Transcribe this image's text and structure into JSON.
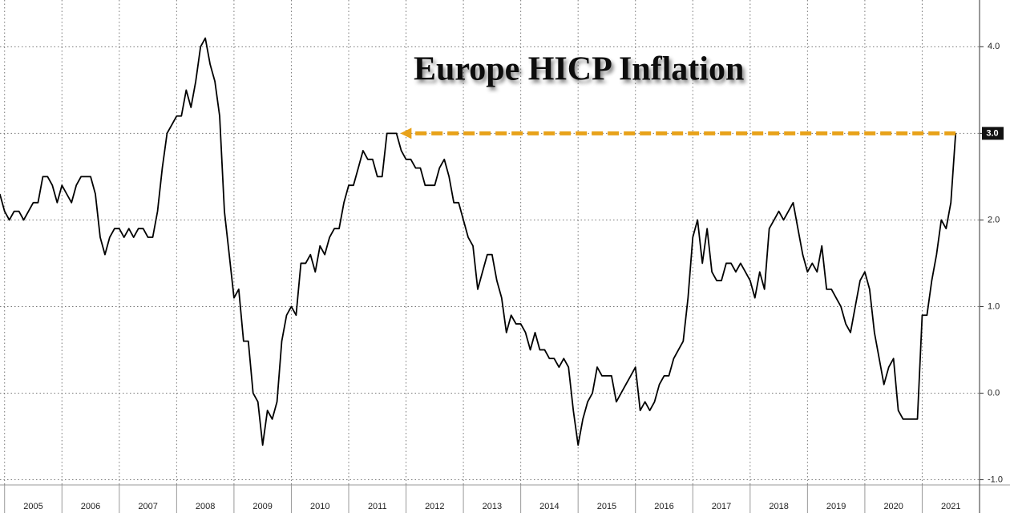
{
  "chart_data": {
    "type": "line",
    "title": "Europe HICP Inflation",
    "x": [
      2004.917,
      2005.0,
      2005.083,
      2005.167,
      2005.25,
      2005.333,
      2005.417,
      2005.5,
      2005.583,
      2005.667,
      2005.75,
      2005.833,
      2005.917,
      2006.0,
      2006.083,
      2006.167,
      2006.25,
      2006.333,
      2006.417,
      2006.5,
      2006.583,
      2006.667,
      2006.75,
      2006.833,
      2006.917,
      2007.0,
      2007.083,
      2007.167,
      2007.25,
      2007.333,
      2007.417,
      2007.5,
      2007.583,
      2007.667,
      2007.75,
      2007.833,
      2007.917,
      2008.0,
      2008.083,
      2008.167,
      2008.25,
      2008.333,
      2008.417,
      2008.5,
      2008.583,
      2008.667,
      2008.75,
      2008.833,
      2008.917,
      2009.0,
      2009.083,
      2009.167,
      2009.25,
      2009.333,
      2009.417,
      2009.5,
      2009.583,
      2009.667,
      2009.75,
      2009.833,
      2009.917,
      2010.0,
      2010.083,
      2010.167,
      2010.25,
      2010.333,
      2010.417,
      2010.5,
      2010.583,
      2010.667,
      2010.75,
      2010.833,
      2010.917,
      2011.0,
      2011.083,
      2011.167,
      2011.25,
      2011.333,
      2011.417,
      2011.5,
      2011.583,
      2011.667,
      2011.75,
      2011.833,
      2011.917,
      2012.0,
      2012.083,
      2012.167,
      2012.25,
      2012.333,
      2012.417,
      2012.5,
      2012.583,
      2012.667,
      2012.75,
      2012.833,
      2012.917,
      2013.0,
      2013.083,
      2013.167,
      2013.25,
      2013.333,
      2013.417,
      2013.5,
      2013.583,
      2013.667,
      2013.75,
      2013.833,
      2013.917,
      2014.0,
      2014.083,
      2014.167,
      2014.25,
      2014.333,
      2014.417,
      2014.5,
      2014.583,
      2014.667,
      2014.75,
      2014.833,
      2014.917,
      2015.0,
      2015.083,
      2015.167,
      2015.25,
      2015.333,
      2015.417,
      2015.5,
      2015.583,
      2015.667,
      2015.75,
      2015.833,
      2015.917,
      2016.0,
      2016.083,
      2016.167,
      2016.25,
      2016.333,
      2016.417,
      2016.5,
      2016.583,
      2016.667,
      2016.75,
      2016.833,
      2016.917,
      2017.0,
      2017.083,
      2017.167,
      2017.25,
      2017.333,
      2017.417,
      2017.5,
      2017.583,
      2017.667,
      2017.75,
      2017.833,
      2017.917,
      2018.0,
      2018.083,
      2018.167,
      2018.25,
      2018.333,
      2018.417,
      2018.5,
      2018.583,
      2018.667,
      2018.75,
      2018.833,
      2018.917,
      2019.0,
      2019.083,
      2019.167,
      2019.25,
      2019.333,
      2019.417,
      2019.5,
      2019.583,
      2019.667,
      2019.75,
      2019.833,
      2019.917,
      2020.0,
      2020.083,
      2020.167,
      2020.25,
      2020.333,
      2020.417,
      2020.5,
      2020.583,
      2020.667,
      2020.75,
      2020.833,
      2020.917,
      2021.0,
      2021.083,
      2021.167,
      2021.25,
      2021.333,
      2021.417,
      2021.5,
      2021.583
    ],
    "series": [
      {
        "name": "HICP",
        "color": "#000000",
        "values": [
          2.3,
          2.1,
          2.0,
          2.1,
          2.1,
          2.0,
          2.1,
          2.2,
          2.2,
          2.5,
          2.5,
          2.4,
          2.2,
          2.4,
          2.3,
          2.2,
          2.4,
          2.5,
          2.5,
          2.5,
          2.3,
          1.8,
          1.6,
          1.8,
          1.9,
          1.9,
          1.8,
          1.9,
          1.8,
          1.9,
          1.9,
          1.8,
          1.8,
          2.1,
          2.6,
          3.0,
          3.1,
          3.2,
          3.2,
          3.5,
          3.3,
          3.6,
          4.0,
          4.1,
          3.8,
          3.6,
          3.2,
          2.1,
          1.6,
          1.1,
          1.2,
          0.6,
          0.6,
          0.0,
          -0.1,
          -0.6,
          -0.2,
          -0.3,
          -0.1,
          0.6,
          0.9,
          1.0,
          0.9,
          1.5,
          1.5,
          1.6,
          1.4,
          1.7,
          1.6,
          1.8,
          1.9,
          1.9,
          2.2,
          2.4,
          2.4,
          2.6,
          2.8,
          2.7,
          2.7,
          2.5,
          2.5,
          3.0,
          3.0,
          3.0,
          2.8,
          2.7,
          2.7,
          2.6,
          2.6,
          2.4,
          2.4,
          2.4,
          2.6,
          2.7,
          2.5,
          2.2,
          2.2,
          2.0,
          1.8,
          1.7,
          1.2,
          1.4,
          1.6,
          1.6,
          1.3,
          1.1,
          0.7,
          0.9,
          0.8,
          0.8,
          0.7,
          0.5,
          0.7,
          0.5,
          0.5,
          0.4,
          0.4,
          0.3,
          0.4,
          0.3,
          -0.2,
          -0.6,
          -0.3,
          -0.1,
          0.0,
          0.3,
          0.2,
          0.2,
          0.2,
          -0.1,
          0.0,
          0.1,
          0.2,
          0.3,
          -0.2,
          -0.1,
          -0.2,
          -0.1,
          0.1,
          0.2,
          0.2,
          0.4,
          0.5,
          0.6,
          1.1,
          1.8,
          2.0,
          1.5,
          1.9,
          1.4,
          1.3,
          1.3,
          1.5,
          1.5,
          1.4,
          1.5,
          1.4,
          1.3,
          1.1,
          1.4,
          1.2,
          1.9,
          2.0,
          2.1,
          2.0,
          2.1,
          2.2,
          1.9,
          1.6,
          1.4,
          1.5,
          1.4,
          1.7,
          1.2,
          1.2,
          1.1,
          1.0,
          0.8,
          0.7,
          1.0,
          1.3,
          1.4,
          1.2,
          0.7,
          0.4,
          0.1,
          0.3,
          0.4,
          -0.2,
          -0.3,
          -0.3,
          -0.3,
          -0.3,
          0.9,
          0.9,
          1.3,
          1.6,
          2.0,
          1.9,
          2.2,
          3.0
        ]
      }
    ],
    "xlim": [
      2004.92,
      2022.0
    ],
    "xticks": [
      2005,
      2006,
      2007,
      2008,
      2009,
      2010,
      2011,
      2012,
      2013,
      2014,
      2015,
      2016,
      2017,
      2018,
      2019,
      2020,
      2021
    ],
    "ylim": [
      -1.06,
      4.54
    ],
    "yticks": [
      {
        "value": 4,
        "label": "4.0"
      },
      {
        "value": 3,
        "label": "3.0"
      },
      {
        "value": 2,
        "label": "2.0"
      },
      {
        "value": 1,
        "label": "1.0"
      },
      {
        "value": 0,
        "label": "0.0"
      },
      {
        "value": -1,
        "label": "-1.0"
      }
    ],
    "grid": true,
    "arrow": {
      "value": 3.0,
      "from": 2021.583,
      "to": 2011.9,
      "color": "#e8a21a"
    },
    "last_value": {
      "value": 3.0,
      "label": "3.0"
    }
  }
}
